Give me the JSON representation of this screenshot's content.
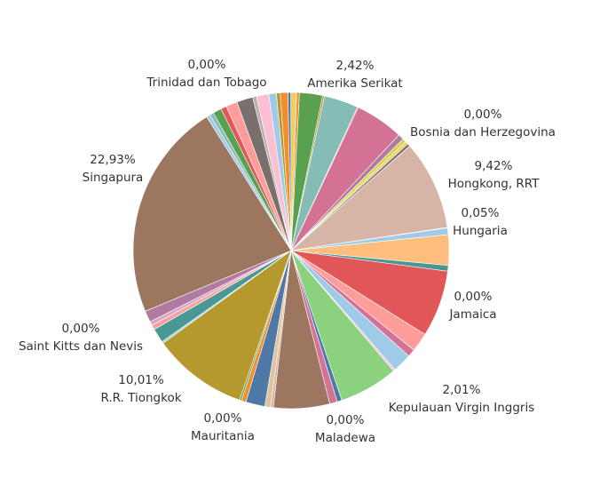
{
  "chart_data": {
    "type": "pie",
    "start_angle_deg": 2.0,
    "direction": "clockwise",
    "slices": [
      {
        "value": 0.3,
        "color": "#f28e2b"
      },
      {
        "value": 2.42,
        "color": "#59a14f",
        "name": "Amerika Serikat",
        "pct": "2,42%"
      },
      {
        "value": 0.2,
        "color": "#b6992d"
      },
      {
        "value": 3.6,
        "color": "#86bcb6"
      },
      {
        "value": 0.1,
        "color": "#e15759"
      },
      {
        "value": 5.1,
        "color": "#d37295"
      },
      {
        "value": 0.6,
        "color": "#b07aa1"
      },
      {
        "value": 0.0,
        "color": "#9d7660",
        "name": "Bosnia dan Herzegovina",
        "pct": "0,00%"
      },
      {
        "value": 0.4,
        "color": "#d4d44f"
      },
      {
        "value": 0.3,
        "color": "#f1ce63"
      },
      {
        "value": 0.3,
        "color": "#79706e"
      },
      {
        "value": 9.42,
        "color": "#d7b5a6",
        "name": "Hongkong, RRT",
        "pct": "9,42%"
      },
      {
        "value": 0.05,
        "color": "#e15759",
        "name": "Hungaria",
        "pct": "0,05%"
      },
      {
        "value": 0.7,
        "color": "#a0cbe8"
      },
      {
        "value": 3.2,
        "color": "#ffbe7d"
      },
      {
        "value": 0.6,
        "color": "#499894"
      },
      {
        "value": 0.0,
        "color": "#d4a6c8",
        "name": "Jamaica",
        "pct": "0,00%"
      },
      {
        "value": 7.0,
        "color": "#e15759"
      },
      {
        "value": 2.0,
        "color": "#ff9d9a"
      },
      {
        "value": 0.8,
        "color": "#d37295"
      },
      {
        "value": 2.01,
        "color": "#a0cbe8",
        "name": "Kepulauan Virgin Inggris",
        "pct": "2,01%"
      },
      {
        "value": 0.2,
        "color": "#fabfd2"
      },
      {
        "value": 6.2,
        "color": "#8cd17d"
      },
      {
        "value": 0.5,
        "color": "#4e79a7"
      },
      {
        "value": 0.0,
        "color": "#bab0ac",
        "name": "Maladewa",
        "pct": "0,00%"
      },
      {
        "value": 0.8,
        "color": "#d37295"
      },
      {
        "value": 5.9,
        "color": "#9d7660"
      },
      {
        "value": 0.3,
        "color": "#d7b5a6"
      },
      {
        "value": 0.6,
        "color": "#e0c39a"
      },
      {
        "value": 0.0,
        "color": "#86bcb6",
        "name": "Mauritania",
        "pct": "0,00%"
      },
      {
        "value": 2.0,
        "color": "#4e79a7"
      },
      {
        "value": 0.5,
        "color": "#f28e2b"
      },
      {
        "value": 0.2,
        "color": "#59a14f"
      },
      {
        "value": 10.01,
        "color": "#b6992d",
        "name": "R.R. Tiongkok",
        "pct": "10,01%"
      },
      {
        "value": 0.2,
        "color": "#a0cbe8"
      },
      {
        "value": 1.5,
        "color": "#499894"
      },
      {
        "value": 0.5,
        "color": "#ff9d9a"
      },
      {
        "value": 0.0,
        "color": "#79706e",
        "name": "Saint Kitts dan Nevis",
        "pct": "0,00%"
      },
      {
        "value": 0.4,
        "color": "#d4a6c8"
      },
      {
        "value": 1.2,
        "color": "#b07aa1"
      },
      {
        "value": 22.93,
        "color": "#9d7660",
        "name": "Singapura",
        "pct": "22,93%"
      },
      {
        "value": 0.4,
        "color": "#a0cbe8"
      },
      {
        "value": 0.4,
        "color": "#86bcb6"
      },
      {
        "value": 0.9,
        "color": "#59a14f"
      },
      {
        "value": 0.6,
        "color": "#e15759"
      },
      {
        "value": 1.2,
        "color": "#ff9d9a"
      },
      {
        "value": 1.7,
        "color": "#79706e"
      },
      {
        "value": 0.4,
        "color": "#bab0ac"
      },
      {
        "value": 1.3,
        "color": "#fabfd2"
      },
      {
        "value": 0.8,
        "color": "#a0cbe8"
      },
      {
        "value": 0.0,
        "color": "#d4d44f",
        "name": "Trinidad dan  Tobago",
        "pct": "0,00%"
      },
      {
        "value": 0.4,
        "color": "#b6992d"
      },
      {
        "value": 0.8,
        "color": "#f28e2b"
      },
      {
        "value": 0.3,
        "color": "#4e79a7"
      },
      {
        "value": 0.6,
        "color": "#f1ce63"
      }
    ]
  }
}
